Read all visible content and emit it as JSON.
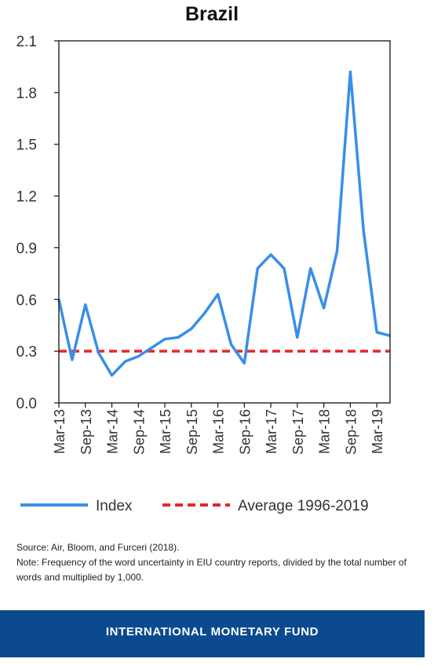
{
  "chart_data": {
    "type": "line",
    "title": "Brazil",
    "xlabel": "",
    "ylabel": "",
    "ylim": [
      0,
      2.1
    ],
    "yticks": [
      "0.0",
      "0.3",
      "0.6",
      "0.9",
      "1.2",
      "1.5",
      "1.8",
      "2.1"
    ],
    "x_tick_labels": [
      "Mar-13",
      "Sep-13",
      "Mar-14",
      "Sep-14",
      "Mar-15",
      "Sep-15",
      "Mar-16",
      "Sep-16",
      "Mar-17",
      "Sep-17",
      "Mar-18",
      "Sep-18",
      "Mar-19"
    ],
    "grid": false,
    "legend_position": "bottom",
    "series": [
      {
        "name": "Index",
        "color": "#3a8ee8",
        "style": "solid",
        "values": [
          0.6,
          0.25,
          0.57,
          0.29,
          0.16,
          0.24,
          0.27,
          0.32,
          0.37,
          0.38,
          0.43,
          0.52,
          0.63,
          0.34,
          0.23,
          0.78,
          0.86,
          0.78,
          0.38,
          0.78,
          0.55,
          0.88,
          1.92,
          1.0,
          0.41,
          0.39
        ]
      },
      {
        "name": "Average 1996-2019",
        "color": "#e8262a",
        "style": "dashed",
        "values": [
          0.3
        ]
      }
    ]
  },
  "notes": {
    "source": "Source: Air, Bloom, and Furceri (2018).",
    "note": "Note: Frequency of the word uncertainty in EIU country reports, divided by the total number of words and multiplied by 1,000."
  },
  "footer": {
    "org_name": "INTERNATIONAL MONETARY FUND",
    "background_color": "#0b4a8f"
  }
}
